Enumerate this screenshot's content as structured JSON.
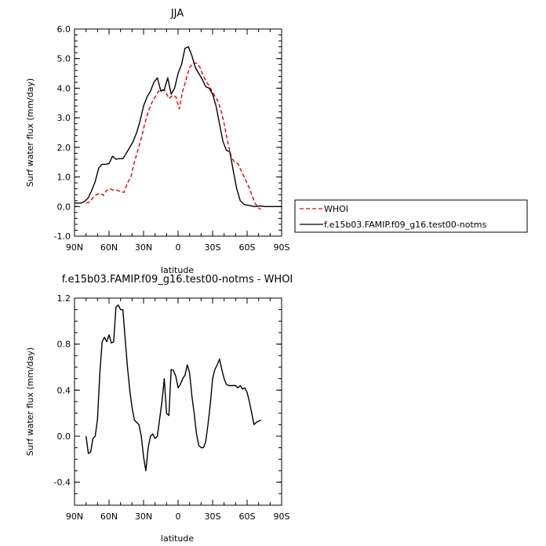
{
  "chart_data": [
    {
      "type": "line",
      "title": "JJA",
      "xlabel": "latitude",
      "ylabel": "Surf water flux (mm/day)",
      "xlim": [
        90,
        -90
      ],
      "ylim": [
        -1,
        6
      ],
      "x_ticks": [
        90,
        60,
        30,
        0,
        -30,
        -60,
        -90
      ],
      "x_tick_labels": [
        "90N",
        "60N",
        "30N",
        "0",
        "30S",
        "60S",
        "90S"
      ],
      "y_ticks": [
        -1,
        0,
        1,
        2,
        3,
        4,
        5,
        6
      ],
      "y_tick_labels": [
        "-1.0",
        "0.0",
        "1.0",
        "2.0",
        "3.0",
        "4.0",
        "5.0",
        "6.0"
      ],
      "legend_position": "outside-right",
      "series": [
        {
          "name": "WHOI",
          "color": "#e00000",
          "dash": "dashed",
          "x": [
            80,
            77,
            74,
            71,
            68,
            65,
            62,
            59,
            56,
            53,
            50,
            47,
            44,
            41,
            38,
            35,
            32,
            29,
            26,
            23,
            20,
            17,
            14,
            11,
            8,
            5,
            2,
            -1,
            -4,
            -7,
            -10,
            -13,
            -16,
            -19,
            -22,
            -25,
            -28,
            -31,
            -34,
            -37,
            -40,
            -43,
            -46,
            -49,
            -52,
            -55,
            -58,
            -61,
            -64,
            -67,
            -70,
            -72
          ],
          "y": [
            0.12,
            0.15,
            0.3,
            0.4,
            0.45,
            0.38,
            0.55,
            0.6,
            0.55,
            0.55,
            0.5,
            0.48,
            0.8,
            1.0,
            1.5,
            1.9,
            2.3,
            2.8,
            3.2,
            3.5,
            3.7,
            3.9,
            3.95,
            3.9,
            3.65,
            3.75,
            3.72,
            3.3,
            3.9,
            4.3,
            4.7,
            4.85,
            4.85,
            4.7,
            4.4,
            4.2,
            4.0,
            3.8,
            3.6,
            3.3,
            2.8,
            2.2,
            1.7,
            1.5,
            1.45,
            1.2,
            0.95,
            0.7,
            0.4,
            0.1,
            -0.05,
            -0.1
          ]
        },
        {
          "name": "f.e15b03.FAMIP.f09_g16.test00-notms",
          "color": "#000000",
          "dash": "solid",
          "x": [
            90,
            87,
            84,
            81,
            78,
            75,
            72,
            69,
            66,
            63,
            60,
            57,
            54,
            51,
            48,
            45,
            42,
            39,
            36,
            33,
            30,
            27,
            24,
            21,
            18,
            15,
            12,
            9,
            6,
            3,
            0,
            -3,
            -6,
            -9,
            -12,
            -15,
            -18,
            -21,
            -24,
            -27,
            -30,
            -33,
            -36,
            -39,
            -42,
            -45,
            -48,
            -51,
            -54,
            -57,
            -60,
            -63,
            -66,
            -69,
            -72,
            -75,
            -78,
            -81,
            -84,
            -87,
            -90
          ],
          "y": [
            0.12,
            0.12,
            0.12,
            0.18,
            0.3,
            0.55,
            0.85,
            1.3,
            1.43,
            1.43,
            1.45,
            1.7,
            1.6,
            1.62,
            1.62,
            1.8,
            2.0,
            2.2,
            2.5,
            2.9,
            3.4,
            3.7,
            3.9,
            4.2,
            4.35,
            3.9,
            3.95,
            4.35,
            3.8,
            4.0,
            4.5,
            4.8,
            5.35,
            5.4,
            5.1,
            4.7,
            4.5,
            4.3,
            4.05,
            4.0,
            3.8,
            3.4,
            2.8,
            2.2,
            1.9,
            1.85,
            1.2,
            0.6,
            0.2,
            0.08,
            0.05,
            0.03,
            0.0,
            0.01,
            0.02,
            0.0,
            0.0,
            0.0,
            0.0,
            0.0,
            0.0
          ]
        }
      ]
    },
    {
      "type": "line",
      "title": "f.e15b03.FAMIP.f09_g16.test00-notms - WHOI",
      "xlabel": "latitude",
      "ylabel": "Surf water flux (mm/day)",
      "xlim": [
        90,
        -90
      ],
      "ylim": [
        -0.6,
        1.2
      ],
      "x_ticks": [
        90,
        60,
        30,
        0,
        -30,
        -60,
        -90
      ],
      "x_tick_labels": [
        "90N",
        "60N",
        "30N",
        "0",
        "30S",
        "60S",
        "90S"
      ],
      "y_ticks": [
        -0.4,
        0.0,
        0.4,
        0.8,
        1.2
      ],
      "y_tick_labels": [
        "-0.4",
        "0.0",
        "0.4",
        "0.8",
        "1.2"
      ],
      "series": [
        {
          "color": "#000000",
          "dash": "solid",
          "x": [
            80,
            78,
            76,
            74,
            72,
            70,
            68,
            66,
            64,
            62,
            60,
            58,
            56,
            54,
            52,
            50,
            48,
            46,
            44,
            42,
            40,
            38,
            36,
            34,
            32,
            30,
            28,
            26,
            24,
            22,
            20,
            18,
            16,
            14,
            12,
            10,
            8,
            6,
            4,
            2,
            0,
            -2,
            -4,
            -6,
            -8,
            -10,
            -12,
            -14,
            -16,
            -18,
            -20,
            -22,
            -24,
            -26,
            -28,
            -30,
            -32,
            -34,
            -36,
            -38,
            -40,
            -42,
            -44,
            -46,
            -48,
            -50,
            -52,
            -54,
            -56,
            -58,
            -60,
            -62,
            -64,
            -66,
            -68,
            -70,
            -72
          ],
          "y": [
            0.0,
            -0.15,
            -0.14,
            -0.02,
            0.0,
            0.15,
            0.55,
            0.82,
            0.86,
            0.82,
            0.88,
            0.81,
            0.82,
            1.12,
            1.14,
            1.1,
            1.1,
            0.85,
            0.6,
            0.4,
            0.25,
            0.14,
            0.12,
            0.1,
            0.0,
            -0.18,
            -0.3,
            -0.1,
            0.0,
            0.02,
            -0.02,
            0.0,
            0.15,
            0.3,
            0.5,
            0.2,
            0.18,
            0.58,
            0.57,
            0.52,
            0.42,
            0.45,
            0.5,
            0.53,
            0.62,
            0.55,
            0.35,
            0.2,
            0.02,
            -0.08,
            -0.1,
            -0.1,
            -0.05,
            0.1,
            0.28,
            0.5,
            0.58,
            0.62,
            0.67,
            0.58,
            0.5,
            0.45,
            0.44,
            0.44,
            0.44,
            0.44,
            0.42,
            0.44,
            0.41,
            0.42,
            0.38,
            0.3,
            0.2,
            0.1,
            0.12,
            0.13,
            0.14
          ]
        }
      ]
    }
  ]
}
